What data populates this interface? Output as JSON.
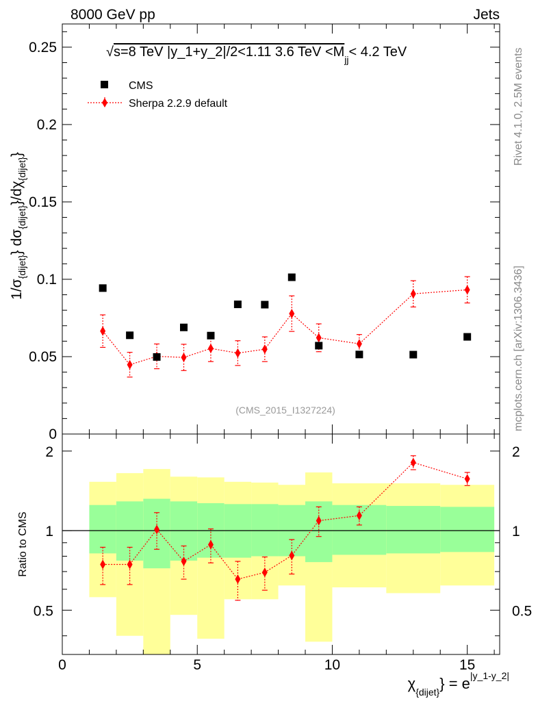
{
  "header": {
    "left": "8000 GeV pp",
    "right": "Jets"
  },
  "side_labels": {
    "rivet": "Rivet 4.1.0,  2.5M events",
    "mcplots": "mcplots.cern.ch [arXiv:1306.3436]"
  },
  "chart_data": {
    "type": "scatter",
    "title": "√s=8 TeV |y_1+y_2|/2<1.11 3.6 TeV <M_jj< 4.2 TeV",
    "title_parts": {
      "sqrt": "√",
      "main": "s=8 TeV |y_1+y_2|/2<1.11 3.6 TeV <M",
      "sub": "jj",
      "tail": "< 4.2 TeV"
    },
    "analysis_id": "(CMS_2015_I1327224)",
    "xlabel": "χ_{dijet} = e^{|y_1-y_2|}",
    "xlabel_parts": {
      "chi": "χ",
      "chi_sub": "{dijet}",
      "mid": "} = e",
      "sup": "|y_1-y_2|"
    },
    "ylabel": "1/σ_{dijet} dσ_{dijet}/dχ_{dijet}",
    "ylabel_parts": {
      "a": "1/σ",
      "a_sub": "{dijet}",
      "b": "} dσ",
      "b_sub": "{dijet}",
      "c": "}/dχ",
      "c_sub": "{dijet}",
      "d": "}"
    },
    "ratio_ylabel": "Ratio to CMS",
    "xlim": [
      0,
      16.2
    ],
    "ylim": [
      0,
      0.265
    ],
    "ratio_ylim": [
      0.34,
      2.32
    ],
    "x_ticks": [
      0,
      5,
      10,
      15
    ],
    "x_tick_labels": [
      "0",
      "5",
      "10",
      "15"
    ],
    "y_ticks": [
      0,
      0.05,
      0.1,
      0.15,
      0.2,
      0.25
    ],
    "y_tick_labels": [
      "0",
      "0.05",
      "0.1",
      "0.15",
      "0.2",
      "0.25"
    ],
    "ratio_y_ticks": [
      0.5,
      1,
      2
    ],
    "ratio_y_tick_labels": [
      "0.5",
      "1",
      "2"
    ],
    "legend": [
      {
        "name": "CMS",
        "marker": "square",
        "color": "#000000"
      },
      {
        "name": "Sherpa 2.2.9 default",
        "marker": "diamond",
        "color": "#ff0000"
      }
    ],
    "bins": [
      {
        "lo": 1,
        "hi": 2
      },
      {
        "lo": 2,
        "hi": 3
      },
      {
        "lo": 3,
        "hi": 4
      },
      {
        "lo": 4,
        "hi": 5
      },
      {
        "lo": 5,
        "hi": 6
      },
      {
        "lo": 6,
        "hi": 7
      },
      {
        "lo": 7,
        "hi": 8
      },
      {
        "lo": 8,
        "hi": 9
      },
      {
        "lo": 9,
        "hi": 10
      },
      {
        "lo": 10,
        "hi": 12
      },
      {
        "lo": 12,
        "hi": 14
      },
      {
        "lo": 14,
        "hi": 16
      }
    ],
    "series": [
      {
        "name": "CMS",
        "x": [
          1.5,
          2.5,
          3.5,
          4.5,
          5.5,
          6.5,
          7.5,
          8.5,
          9.5,
          11,
          13,
          15
        ],
        "y": [
          0.0943,
          0.0638,
          0.0498,
          0.0689,
          0.0636,
          0.0838,
          0.0836,
          0.1013,
          0.0571,
          0.0514,
          0.0513,
          0.0628
        ]
      },
      {
        "name": "Sherpa 2.2.9 default",
        "x": [
          1.5,
          2.5,
          3.5,
          4.5,
          5.5,
          6.5,
          7.5,
          8.5,
          9.5,
          11,
          13,
          15
        ],
        "y": [
          0.0665,
          0.0448,
          0.0502,
          0.0495,
          0.0553,
          0.0523,
          0.0548,
          0.0778,
          0.0622,
          0.0583,
          0.0906,
          0.0932
        ],
        "yerr": [
          0.0105,
          0.008,
          0.008,
          0.0085,
          0.0085,
          0.008,
          0.008,
          0.0115,
          0.009,
          0.006,
          0.0085,
          0.0085
        ]
      }
    ],
    "ratio": {
      "x": [
        1.5,
        2.5,
        3.5,
        4.5,
        5.5,
        6.5,
        7.5,
        8.5,
        9.5,
        11,
        13,
        15
      ],
      "values": [
        0.745,
        0.745,
        1.01,
        0.765,
        0.885,
        0.655,
        0.695,
        0.805,
        1.09,
        1.14,
        1.81,
        1.57
      ],
      "errors": [
        0.12,
        0.12,
        0.16,
        0.11,
        0.13,
        0.11,
        0.1,
        0.12,
        0.14,
        0.09,
        0.11,
        0.09
      ],
      "band_green": [
        [
          0.82,
          1.25
        ],
        [
          0.77,
          1.29
        ],
        [
          0.72,
          1.32
        ],
        [
          0.77,
          1.29
        ],
        [
          0.79,
          1.27
        ],
        [
          0.79,
          1.26
        ],
        [
          0.8,
          1.26
        ],
        [
          0.8,
          1.25
        ],
        [
          0.76,
          1.29
        ],
        [
          0.81,
          1.25
        ],
        [
          0.82,
          1.24
        ],
        [
          0.83,
          1.23
        ]
      ],
      "band_yellow": [
        [
          0.56,
          1.53
        ],
        [
          0.4,
          1.65
        ],
        [
          0.34,
          1.71
        ],
        [
          0.48,
          1.6
        ],
        [
          0.39,
          1.59
        ],
        [
          0.55,
          1.53
        ],
        [
          0.55,
          1.52
        ],
        [
          0.62,
          1.49
        ],
        [
          0.38,
          1.66
        ],
        [
          0.61,
          1.51
        ],
        [
          0.58,
          1.51
        ],
        [
          0.62,
          1.49
        ]
      ]
    }
  }
}
